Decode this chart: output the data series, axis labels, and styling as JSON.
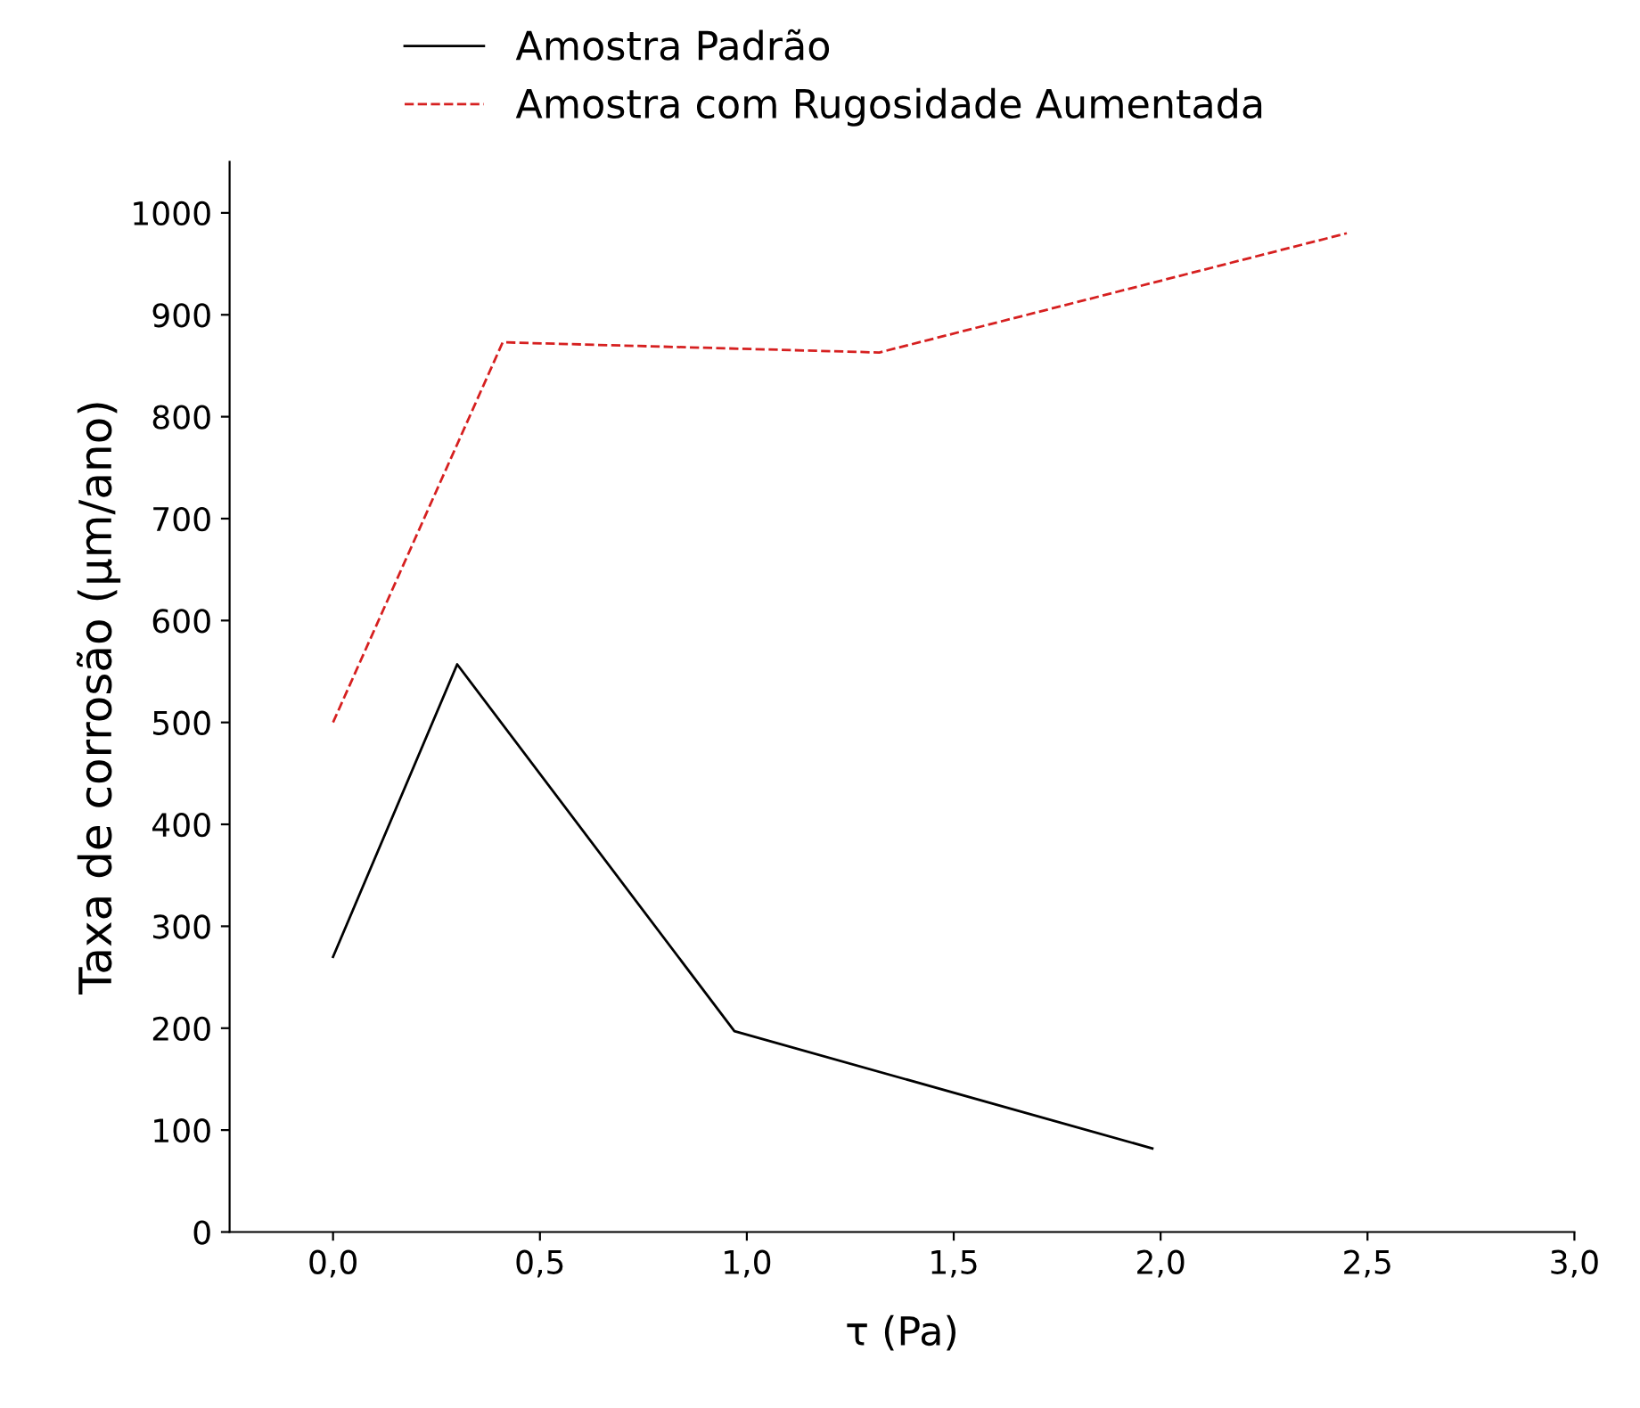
{
  "chart_data": {
    "type": "line",
    "xlabel": "τ (Pa)",
    "ylabel": "Taxa de corrosão (µm/ano)",
    "series": [
      {
        "name": "Amostra Padrão",
        "color": "#000000",
        "line_style": "solid",
        "x": [
          0,
          0.3,
          0.97,
          1.98
        ],
        "values": [
          270,
          557,
          197,
          82
        ]
      },
      {
        "name": "Amostra com Rugosidade Aumentada",
        "color": "#d62020",
        "line_style": "dashed",
        "x": [
          0,
          0.41,
          1.32,
          2.45
        ],
        "values": [
          500,
          873,
          863,
          980
        ]
      }
    ],
    "xlim": [
      -0.25,
      3.0
    ],
    "ylim": [
      0,
      1050
    ],
    "xticks": [
      {
        "value": 0,
        "label": "0,0"
      },
      {
        "value": 0.5,
        "label": "0,5"
      },
      {
        "value": 1,
        "label": "1,0"
      },
      {
        "value": 1.5,
        "label": "1,5"
      },
      {
        "value": 2,
        "label": "2,0"
      },
      {
        "value": 2.5,
        "label": "2,5"
      },
      {
        "value": 3,
        "label": "3,0"
      }
    ],
    "yticks": [
      0,
      100,
      200,
      300,
      400,
      500,
      600,
      700,
      800,
      900,
      1000
    ],
    "legend": "top",
    "grid": false
  }
}
